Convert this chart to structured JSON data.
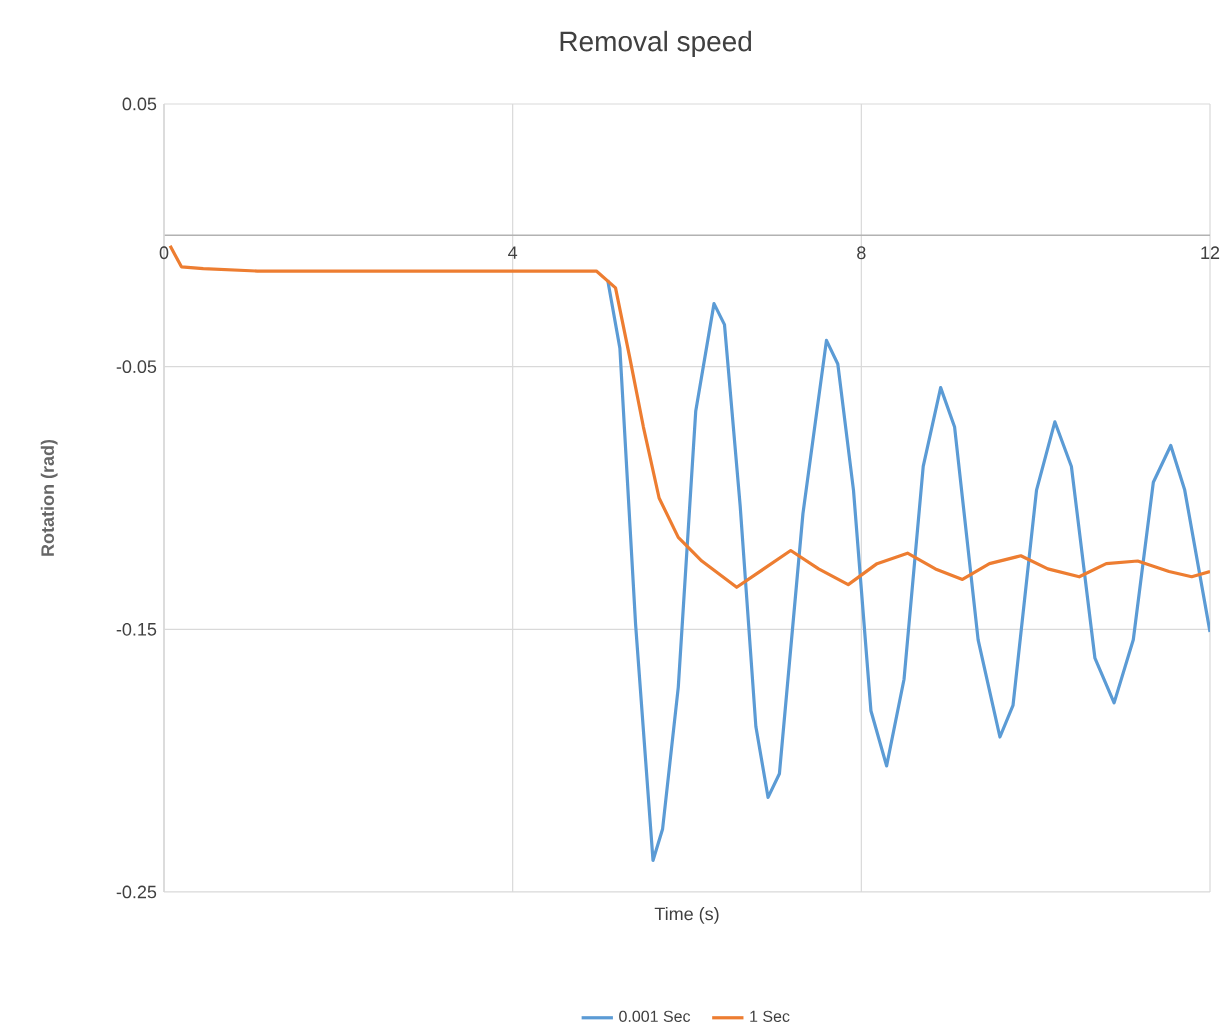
{
  "chart_data": {
    "type": "line",
    "title": "Removal speed",
    "xlabel": "Time (s)",
    "ylabel": "Rotation (rad)",
    "xlim": [
      0,
      12
    ],
    "ylim": [
      -0.25,
      0.05
    ],
    "xticks": [
      0,
      4,
      8,
      12
    ],
    "yticks": [
      0.05,
      -0.05,
      -0.15,
      -0.25
    ],
    "grid": true,
    "legend": "bottom",
    "marker": "none",
    "line_style": "solid",
    "series": [
      {
        "name": "0.001 Sec",
        "color": "#5b9bd5",
        "x": [
          5.09,
          5.23,
          5.41,
          5.61,
          5.72,
          5.9,
          6.1,
          6.31,
          6.43,
          6.61,
          6.79,
          6.93,
          7.06,
          7.33,
          7.6,
          7.73,
          7.91,
          8.11,
          8.29,
          8.49,
          8.71,
          8.91,
          9.07,
          9.34,
          9.59,
          9.74,
          10.01,
          10.22,
          10.41,
          10.68,
          10.9,
          11.12,
          11.35,
          11.55,
          11.71,
          12
        ],
        "values": [
          -0.017,
          -0.043,
          -0.148,
          -0.238,
          -0.226,
          -0.172,
          -0.067,
          -0.026,
          -0.034,
          -0.103,
          -0.187,
          -0.214,
          -0.205,
          -0.106,
          -0.04,
          -0.049,
          -0.097,
          -0.181,
          -0.202,
          -0.169,
          -0.088,
          -0.058,
          -0.073,
          -0.154,
          -0.191,
          -0.179,
          -0.097,
          -0.071,
          -0.088,
          -0.161,
          -0.178,
          -0.154,
          -0.094,
          -0.08,
          -0.097,
          -0.151
        ]
      },
      {
        "name": "1 Sec",
        "color": "#ed7d31",
        "x": [
          0.07,
          0.2,
          0.45,
          1.07,
          4.96,
          5.18,
          5.34,
          5.5,
          5.68,
          5.9,
          6.17,
          6.57,
          6.88,
          7.19,
          7.51,
          7.85,
          8.18,
          8.53,
          8.85,
          9.16,
          9.47,
          9.83,
          10.14,
          10.5,
          10.81,
          11.17,
          11.53,
          11.79,
          12
        ],
        "values": [
          -0.004,
          -0.012,
          -0.0127,
          -0.0136,
          -0.0136,
          -0.02,
          -0.046,
          -0.073,
          -0.1,
          -0.115,
          -0.124,
          -0.134,
          -0.127,
          -0.12,
          -0.127,
          -0.133,
          -0.125,
          -0.121,
          -0.127,
          -0.131,
          -0.125,
          -0.122,
          -0.127,
          -0.13,
          -0.125,
          -0.124,
          -0.128,
          -0.13,
          -0.128
        ]
      }
    ]
  }
}
